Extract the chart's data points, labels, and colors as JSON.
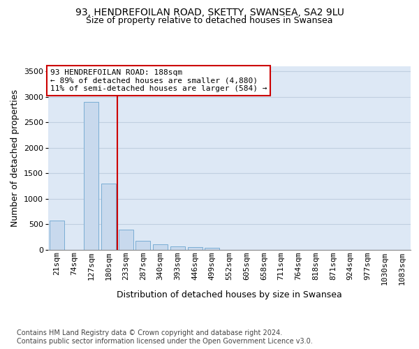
{
  "title1": "93, HENDREFOILAN ROAD, SKETTY, SWANSEA, SA2 9LU",
  "title2": "Size of property relative to detached houses in Swansea",
  "xlabel": "Distribution of detached houses by size in Swansea",
  "ylabel": "Number of detached properties",
  "footnote1": "Contains HM Land Registry data © Crown copyright and database right 2024.",
  "footnote2": "Contains public sector information licensed under the Open Government Licence v3.0.",
  "annotation_line1": "93 HENDREFOILAN ROAD: 188sqm",
  "annotation_line2": "← 89% of detached houses are smaller (4,880)",
  "annotation_line3": "11% of semi-detached houses are larger (584) →",
  "bar_face_color": "#c8d9ed",
  "bar_edge_color": "#7aadd4",
  "redline_color": "#cc0000",
  "categories": [
    "21sqm",
    "74sqm",
    "127sqm",
    "180sqm",
    "233sqm",
    "287sqm",
    "340sqm",
    "393sqm",
    "446sqm",
    "499sqm",
    "552sqm",
    "605sqm",
    "658sqm",
    "711sqm",
    "764sqm",
    "818sqm",
    "871sqm",
    "924sqm",
    "977sqm",
    "1030sqm",
    "1083sqm"
  ],
  "values": [
    575,
    0,
    2900,
    1300,
    390,
    175,
    100,
    65,
    50,
    40,
    0,
    0,
    0,
    0,
    0,
    0,
    0,
    0,
    0,
    0,
    0
  ],
  "ylim": [
    0,
    3600
  ],
  "yticks": [
    0,
    500,
    1000,
    1500,
    2000,
    2500,
    3000,
    3500
  ],
  "redline_x": 3.5,
  "grid_color": "#c0cfe0",
  "background_color": "#dde8f5",
  "annotation_box_color": "#cc0000",
  "title_fontsize": 10,
  "subtitle_fontsize": 9,
  "axis_tick_fontsize": 8,
  "axis_label_fontsize": 9,
  "annotation_fontsize": 8,
  "footnote_fontsize": 7
}
